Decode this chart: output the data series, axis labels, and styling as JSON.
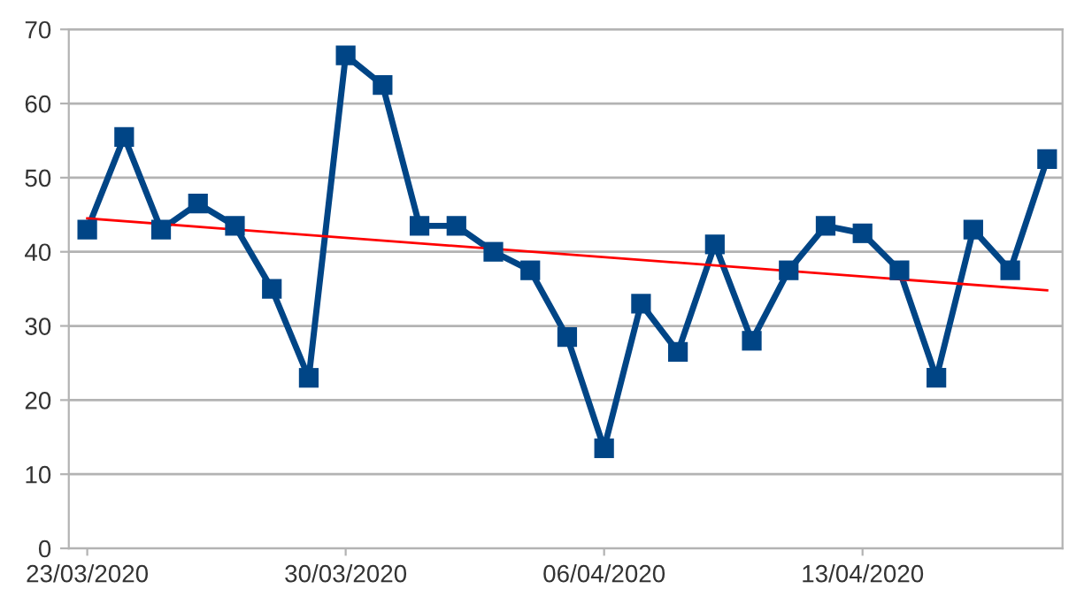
{
  "chart_data": {
    "type": "line",
    "x": [
      "2020-03-23",
      "2020-03-24",
      "2020-03-25",
      "2020-03-26",
      "2020-03-27",
      "2020-03-28",
      "2020-03-29",
      "2020-03-30",
      "2020-03-31",
      "2020-04-01",
      "2020-04-02",
      "2020-04-03",
      "2020-04-04",
      "2020-04-05",
      "2020-04-06",
      "2020-04-07",
      "2020-04-08",
      "2020-04-09",
      "2020-04-10",
      "2020-04-11",
      "2020-04-12",
      "2020-04-13",
      "2020-04-14",
      "2020-04-15",
      "2020-04-16",
      "2020-04-17",
      "2020-04-18"
    ],
    "series": [
      {
        "color": "#004586",
        "marker": "square",
        "values": [
          43,
          55.5,
          43,
          46.5,
          43.5,
          35,
          23,
          66.5,
          62.5,
          43.5,
          43.5,
          40,
          37.5,
          28.5,
          13.5,
          33,
          26.5,
          41,
          28,
          37.5,
          43.5,
          42.5,
          37.5,
          23,
          43,
          37.5,
          52.5
        ]
      },
      {
        "type": "line",
        "color": "#ff0000",
        "marker": "none",
        "x": [
          "2020-03-23",
          "2020-04-18"
        ],
        "values": [
          44.5,
          34.8
        ]
      }
    ],
    "xlim": [
      "2020-03-22T12:00",
      "2020-04-18T10:00"
    ],
    "xticks": [
      {
        "value": "2020-03-23",
        "label": "23/03/2020"
      },
      {
        "value": "2020-03-30",
        "label": "30/03/2020"
      },
      {
        "value": "2020-04-06",
        "label": "06/04/2020"
      },
      {
        "value": "2020-04-13",
        "label": "13/04/2020"
      }
    ],
    "ylim": [
      0,
      70
    ],
    "yticks": [
      0,
      10,
      20,
      30,
      40,
      50,
      60,
      70
    ],
    "grid": "y",
    "line_style": "solid"
  }
}
